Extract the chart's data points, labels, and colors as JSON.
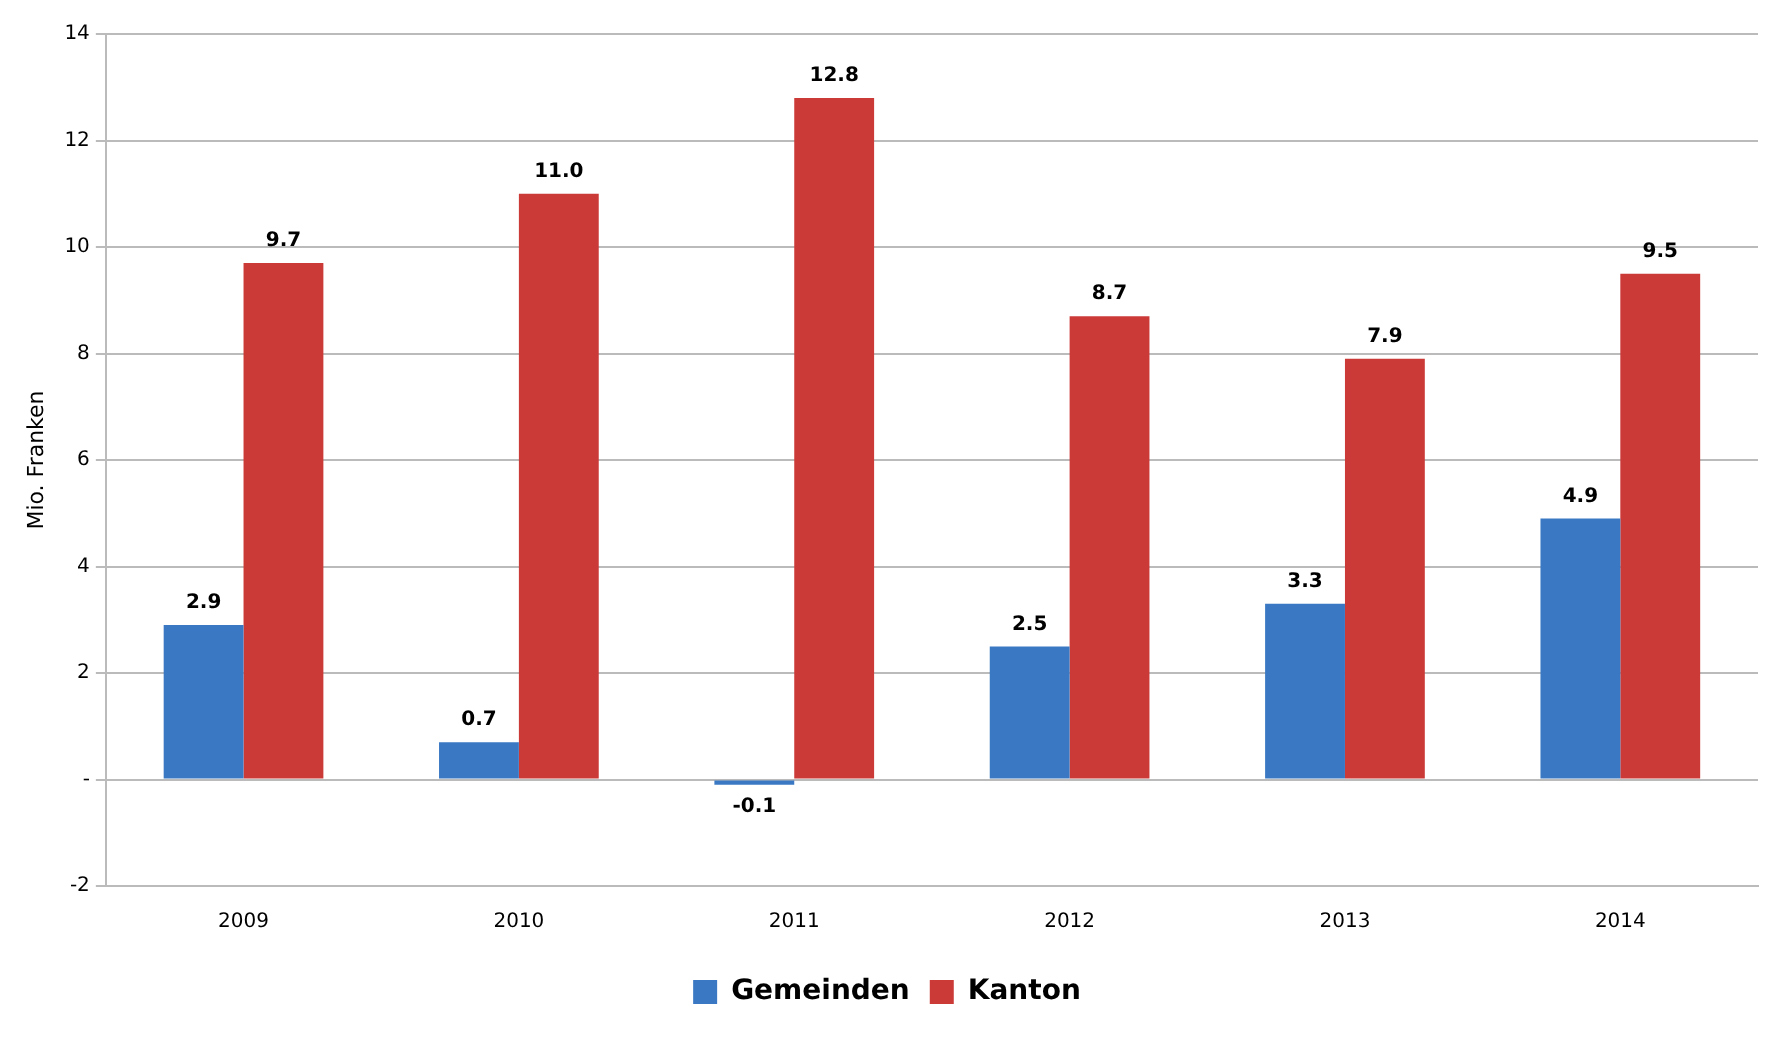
{
  "chart_data": {
    "type": "bar",
    "ylabel": "Mio. Franken",
    "categories": [
      "2009",
      "2010",
      "2011",
      "2012",
      "2013",
      "2014"
    ],
    "series": [
      {
        "name": "Gemeinden",
        "color": "#3a78c4",
        "values": [
          2.9,
          0.7,
          -0.1,
          2.5,
          3.3,
          4.9
        ],
        "value_labels": [
          "2.9",
          "0.7",
          "-0.1",
          "2.5",
          "3.3",
          "4.9"
        ]
      },
      {
        "name": "Kanton",
        "color": "#cc3a38",
        "values": [
          9.7,
          11.0,
          12.8,
          8.7,
          7.9,
          9.5
        ],
        "value_labels": [
          "9.7",
          "11.0",
          "12.8",
          "8.7",
          "7.9",
          "9.5"
        ]
      }
    ],
    "ylim": [
      -2,
      14
    ],
    "yticks": [
      -2,
      {
        "value": 0,
        "label": "-"
      },
      2,
      4,
      6,
      8,
      10,
      12,
      14
    ],
    "grid": "y",
    "legend": "bottom"
  }
}
